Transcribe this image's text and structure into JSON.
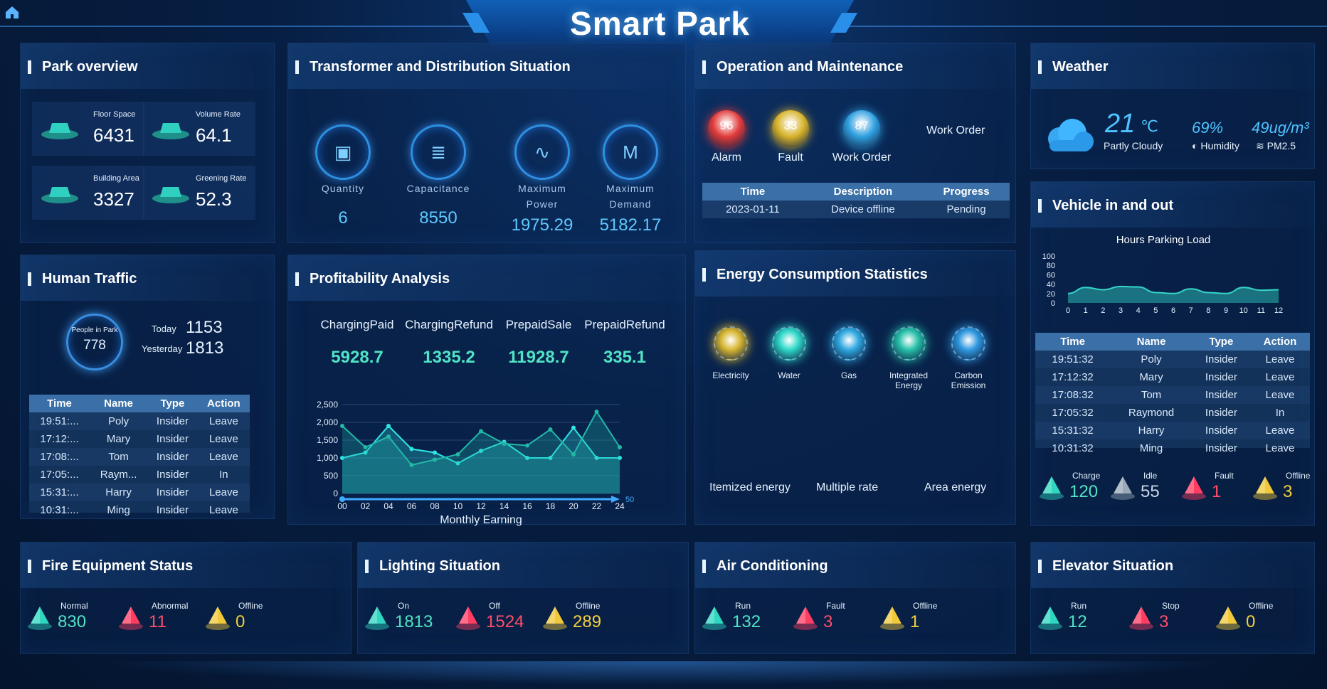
{
  "header": {
    "title": "Smart Park"
  },
  "park_overview": {
    "title": "Park overview",
    "items": [
      {
        "label": "Floor Space",
        "value": "6431"
      },
      {
        "label": "Volume Rate",
        "value": "64.1"
      },
      {
        "label": "Building Area",
        "value": "3327"
      },
      {
        "label": "Greening Rate",
        "value": "52.3"
      }
    ]
  },
  "transformer": {
    "title": "Transformer and Distribution Situation",
    "items": [
      {
        "label": "Quantity",
        "label2": "",
        "value": "6"
      },
      {
        "label": "Capacitance",
        "label2": "",
        "value": "8550"
      },
      {
        "label": "Maximum",
        "label2": "Power",
        "value": "1975.29"
      },
      {
        "label": "Maximum",
        "label2": "Demand",
        "value": "5182.17"
      }
    ]
  },
  "operation": {
    "title": "Operation and Maintenance",
    "orbs": [
      {
        "label": "Alarm",
        "value": "96",
        "color": "#e23b3b"
      },
      {
        "label": "Fault",
        "value": "33",
        "color": "#d7b32a"
      },
      {
        "label": "Work Order",
        "value": "87",
        "color": "#2f9fe0"
      }
    ],
    "work_order_label": "Work Order",
    "table": {
      "columns": [
        "Time",
        "Description",
        "Progress"
      ],
      "rows": [
        [
          "2023-01-11",
          "Device offline",
          "Pending"
        ]
      ]
    }
  },
  "weather": {
    "title": "Weather",
    "temp": "21",
    "unit": "℃",
    "condition": "Partly Cloudy",
    "humidity_value": "69%",
    "humidity_label": "Humidity",
    "pm_value": "49ug/m³",
    "pm_label": "PM2.5"
  },
  "human_traffic": {
    "title": "Human Traffic",
    "people_label": "People in Park",
    "people_value": "778",
    "today_label": "Today",
    "today_value": "1153",
    "yesterday_label": "Yesterday",
    "yesterday_value": "1813",
    "table": {
      "columns": [
        "Time",
        "Name",
        "Type",
        "Action"
      ],
      "rows": [
        [
          "19:51:...",
          "Poly",
          "Insider",
          "Leave"
        ],
        [
          "17:12:...",
          "Mary",
          "Insider",
          "Leave"
        ],
        [
          "17:08:...",
          "Tom",
          "Insider",
          "Leave"
        ],
        [
          "17:05:...",
          "Raym...",
          "Insider",
          "In"
        ],
        [
          "15:31:...",
          "Harry",
          "Insider",
          "Leave"
        ],
        [
          "10:31:...",
          "Ming",
          "Insider",
          "Leave"
        ]
      ]
    }
  },
  "profitability": {
    "title": "Profitability Analysis",
    "metrics": [
      {
        "label": "ChargingPaid",
        "value": "5928.7"
      },
      {
        "label": "ChargingRefund",
        "value": "1335.2"
      },
      {
        "label": "PrepaidSale",
        "value": "11928.7"
      },
      {
        "label": "PrepaidRefund",
        "value": "335.1"
      }
    ],
    "chart_data": {
      "type": "area",
      "x": [
        "00",
        "02",
        "04",
        "06",
        "08",
        "10",
        "12",
        "14",
        "16",
        "18",
        "20",
        "22",
        "24"
      ],
      "series": [
        {
          "values": [
            1000,
            1150,
            1900,
            1250,
            1150,
            850,
            1200,
            1450,
            1000,
            1000,
            1850,
            1000,
            1000
          ],
          "color": "#2ee6e6"
        },
        {
          "values": [
            1900,
            1300,
            1600,
            800,
            950,
            1100,
            1750,
            1400,
            1350,
            1800,
            1100,
            2300,
            1300
          ],
          "color": "#22b8a8"
        }
      ],
      "xlabel": "Monthly Earning",
      "ylim": [
        0,
        2500
      ],
      "yticks": [
        "0",
        "500",
        "1,000",
        "1,500",
        "2,000",
        "2,500"
      ],
      "slider_max": "50",
      "grid": true
    }
  },
  "energy": {
    "title": "Energy Consumption Statistics",
    "items": [
      {
        "label": "Electricity",
        "label2": "",
        "color": "#d8b530"
      },
      {
        "label": "Water",
        "label2": "",
        "color": "#2fd8c8"
      },
      {
        "label": "Gas",
        "label2": "",
        "color": "#2fa8e0"
      },
      {
        "label": "Integrated",
        "label2": "Energy",
        "color": "#27c0a8"
      },
      {
        "label": "Carbon",
        "label2": "Emission",
        "color": "#2f98e0"
      }
    ],
    "tabs": [
      "Itemized energy",
      "Multiple rate",
      "Area energy"
    ]
  },
  "vehicle": {
    "title": "Vehicle in and out",
    "chart_data": {
      "type": "area",
      "title": "Hours Parking Load",
      "x": [
        "0",
        "1",
        "2",
        "3",
        "4",
        "5",
        "6",
        "7",
        "8",
        "9",
        "10",
        "11",
        "12"
      ],
      "series": [
        {
          "values": [
            20,
            33,
            28,
            35,
            34,
            22,
            20,
            30,
            22,
            20,
            33,
            27,
            28
          ],
          "color": "#33d6c8"
        }
      ],
      "ylim": [
        0,
        100
      ],
      "yticks": [
        "0",
        "20",
        "40",
        "60",
        "80",
        "100"
      ]
    },
    "table": {
      "columns": [
        "Time",
        "Name",
        "Type",
        "Action"
      ],
      "rows": [
        [
          "19:51:32",
          "Poly",
          "Insider",
          "Leave"
        ],
        [
          "17:12:32",
          "Mary",
          "Insider",
          "Leave"
        ],
        [
          "17:08:32",
          "Tom",
          "Insider",
          "Leave"
        ],
        [
          "17:05:32",
          "Raymond",
          "Insider",
          "In"
        ],
        [
          "15:31:32",
          "Harry",
          "Insider",
          "Leave"
        ],
        [
          "10:31:32",
          "Ming",
          "Insider",
          "Leave"
        ]
      ]
    },
    "stats": [
      {
        "label": "Charge",
        "value": "120",
        "tone": "teal"
      },
      {
        "label": "Idle",
        "value": "55",
        "tone": "grey"
      },
      {
        "label": "Fault",
        "value": "1",
        "tone": "red"
      },
      {
        "label": "Offline",
        "value": "3",
        "tone": "yellow"
      }
    ]
  },
  "fire": {
    "title": "Fire Equipment Status",
    "stats": [
      {
        "label": "Normal",
        "value": "830",
        "tone": "teal"
      },
      {
        "label": "Abnormal",
        "value": "11",
        "tone": "red"
      },
      {
        "label": "Offline",
        "value": "0",
        "tone": "yellow"
      }
    ]
  },
  "lighting": {
    "title": "Lighting Situation",
    "stats": [
      {
        "label": "On",
        "value": "1813",
        "tone": "teal"
      },
      {
        "label": "Off",
        "value": "1524",
        "tone": "red"
      },
      {
        "label": "Offline",
        "value": "289",
        "tone": "yellow"
      }
    ]
  },
  "aircon": {
    "title": "Air Conditioning",
    "stats": [
      {
        "label": "Run",
        "value": "132",
        "tone": "teal"
      },
      {
        "label": "Fault",
        "value": "3",
        "tone": "red"
      },
      {
        "label": "Offline",
        "value": "1",
        "tone": "yellow"
      }
    ]
  },
  "elevator": {
    "title": "Elevator Situation",
    "stats": [
      {
        "label": "Run",
        "value": "12",
        "tone": "teal"
      },
      {
        "label": "Stop",
        "value": "3",
        "tone": "red"
      },
      {
        "label": "Offline",
        "value": "0",
        "tone": "yellow"
      }
    ]
  }
}
